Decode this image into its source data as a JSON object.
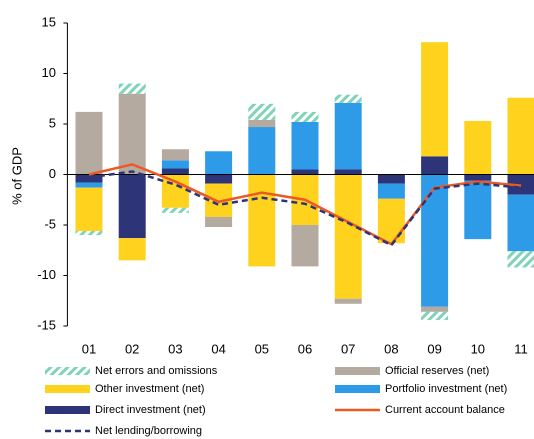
{
  "chart_data": {
    "type": "bar",
    "stacked": true,
    "y_label": "% of GDP",
    "categories": [
      "01",
      "02",
      "03",
      "04",
      "05",
      "06",
      "07",
      "08",
      "09",
      "10",
      "11"
    ],
    "ylim": [
      -15,
      15
    ],
    "yticks": [
      -15,
      -10,
      -5,
      0,
      5,
      10,
      15
    ],
    "series": [
      {
        "name": "Net errors and omissions",
        "type": "bar",
        "color": "#7fd3b8",
        "hatch": true,
        "values": [
          -0.4,
          1.0,
          -0.5,
          0,
          1.6,
          1.0,
          0.8,
          0,
          -0.8,
          0,
          -1.6
        ]
      },
      {
        "name": "Official reserves (net)",
        "type": "bar",
        "color": "#b5aaa0",
        "values": [
          6.2,
          8.0,
          1.1,
          -1.0,
          0.7,
          -4.1,
          -0.5,
          0,
          -0.5,
          0,
          0
        ]
      },
      {
        "name": "Other investment (net)",
        "type": "bar",
        "color": "#ffd21e",
        "values": [
          -4.3,
          -2.2,
          -3.3,
          -3.3,
          -9.1,
          -5.0,
          -12.3,
          -4.4,
          11.3,
          5.3,
          7.6
        ]
      },
      {
        "name": "Portfolio investment (net)",
        "type": "bar",
        "color": "#2e9be8",
        "values": [
          -0.5,
          0,
          0.8,
          2.3,
          4.7,
          4.7,
          6.6,
          -1.5,
          -13.1,
          -5.8,
          -5.6
        ]
      },
      {
        "name": "Direct investment (net)",
        "type": "bar",
        "color": "#2e3478",
        "values": [
          -0.8,
          -6.3,
          0.6,
          -0.9,
          0,
          0.5,
          0.5,
          -0.9,
          1.8,
          -0.6,
          -2.0
        ]
      },
      {
        "name": "Current account balance",
        "type": "line",
        "color": "#ec5a24",
        "values": [
          0,
          1.0,
          -0.7,
          -2.7,
          -1.8,
          -2.5,
          -4.7,
          -6.9,
          -1.3,
          -0.7,
          -1.1
        ]
      },
      {
        "name": "Net lending/borrowing",
        "type": "line",
        "color": "#2e3478",
        "dash": true,
        "values": [
          -0.3,
          0.3,
          -1.0,
          -3.0,
          -2.3,
          -2.9,
          -4.8,
          -7.0,
          -1.4,
          -0.9,
          -1.3
        ]
      }
    ]
  }
}
